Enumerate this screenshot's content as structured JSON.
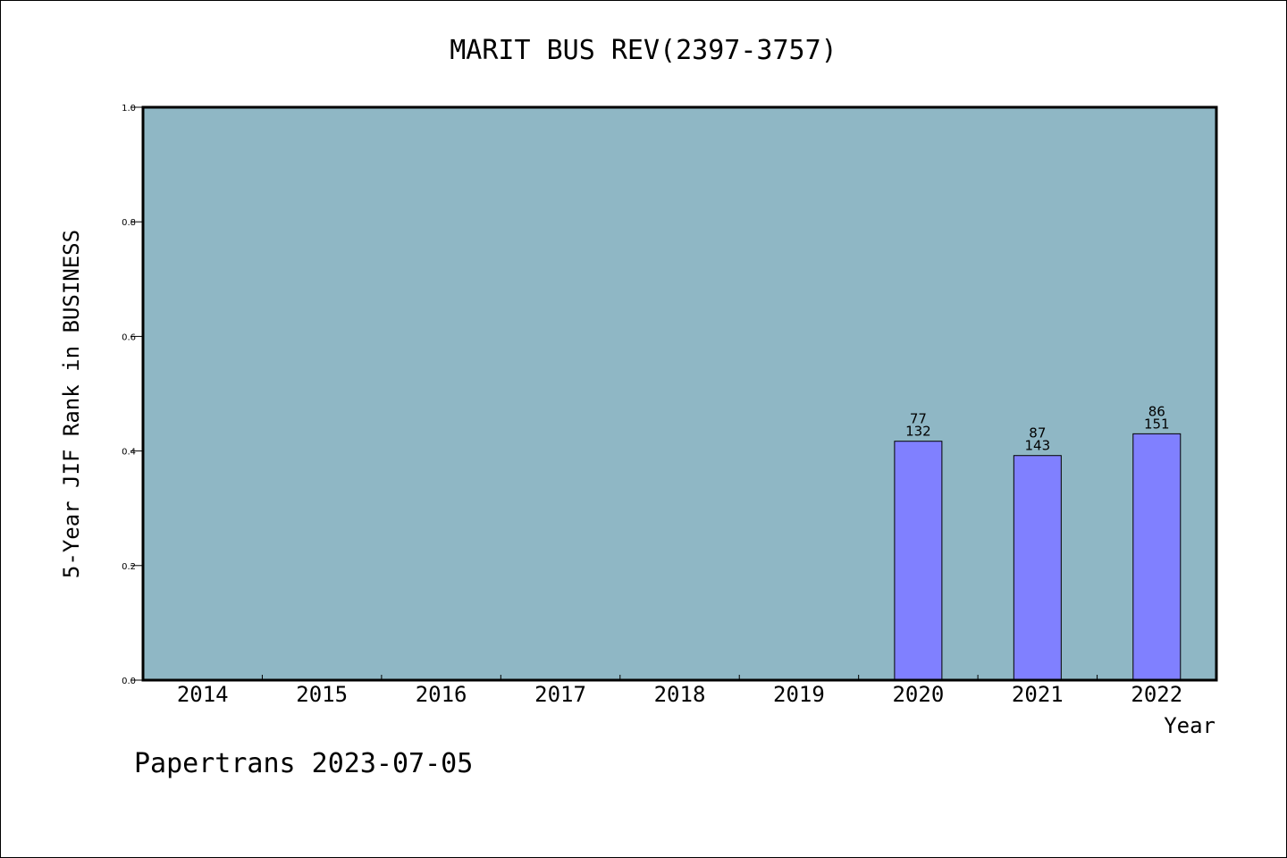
{
  "chart_data": {
    "type": "bar",
    "title": "MARIT BUS REV(2397-3757)",
    "xlabel": "Year",
    "ylabel": "5-Year JIF Rank in BUSINESS",
    "categories": [
      "2014",
      "2015",
      "2016",
      "2017",
      "2018",
      "2019",
      "2020",
      "2021",
      "2022"
    ],
    "values": [
      null,
      null,
      null,
      null,
      null,
      null,
      0.417,
      0.392,
      0.43
    ],
    "bar_labels": [
      null,
      null,
      null,
      null,
      null,
      null,
      {
        "top": "77",
        "bottom": "132"
      },
      {
        "top": "87",
        "bottom": "143"
      },
      {
        "top": "86",
        "bottom": "151"
      }
    ],
    "ylim": [
      0,
      1.0
    ],
    "yticks": [
      "0.0",
      "0.2",
      "0.4",
      "0.6",
      "0.8",
      "1.0"
    ],
    "grid": false,
    "colors": {
      "plot_background": "#8fb7c5",
      "bar_fill": "#8080ff",
      "bar_edge": "#000000"
    }
  },
  "footer": "Papertrans 2023-07-05"
}
